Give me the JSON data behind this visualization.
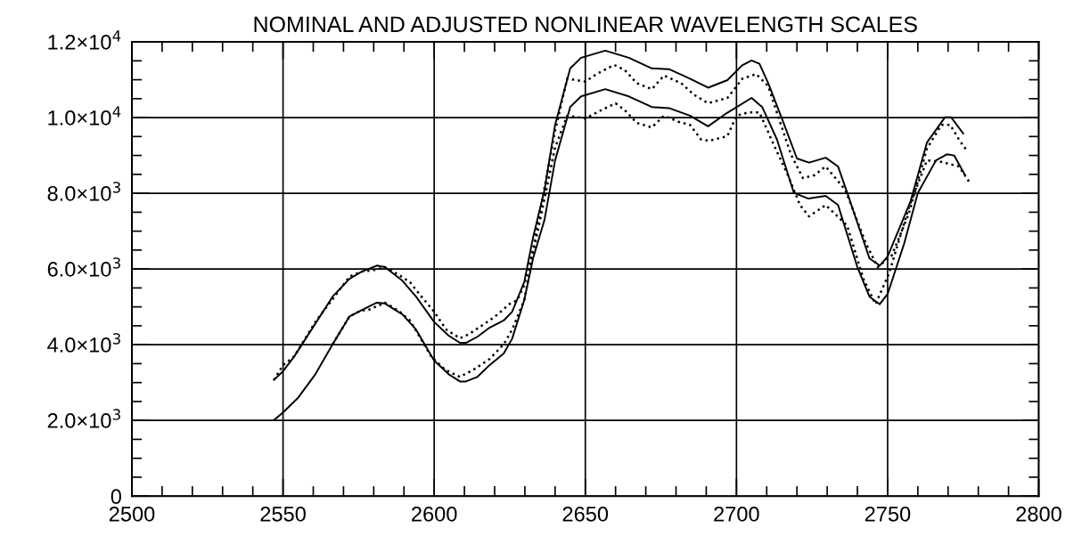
{
  "chart_data": {
    "type": "line",
    "title": "NOMINAL AND ADJUSTED NONLINEAR WAVELENGTH SCALES",
    "xlim": [
      2500,
      2800
    ],
    "xticks": [
      2500,
      2550,
      2600,
      2650,
      2700,
      2750,
      2800
    ],
    "ylim": [
      0,
      12000
    ],
    "yticks": [
      {
        "value": 0,
        "label": "0"
      },
      {
        "value": 2000,
        "label": "2.0×10$^{3}$"
      },
      {
        "value": 4000,
        "label": "4.0×10$^{3}$"
      },
      {
        "value": 6000,
        "label": "6.0×10$^{3}$"
      },
      {
        "value": 8000,
        "label": "8.0×10$^{3}$"
      },
      {
        "value": 10000,
        "label": "1.0×10$^{4}$"
      },
      {
        "value": 12000,
        "label": "1.2×10$^{4}$"
      }
    ],
    "grid": true,
    "marker": "none",
    "series": [
      {
        "color": "#000000",
        "line_style": "solid",
        "x": [
          2547,
          2550,
          2553.7,
          2560.7,
          2566.4,
          2572,
          2576,
          2581,
          2583.7,
          2589.5,
          2594,
          2600,
          2604.8,
          2608.5,
          2610.5,
          2614.3,
          2618.3,
          2623,
          2625.8,
          2629.8,
          2632.7,
          2636.5,
          2640,
          2645,
          2648.6,
          2656.6,
          2664.4,
          2672,
          2677.7,
          2684.6,
          2690.6,
          2697,
          2701.9,
          2705,
          2707.6,
          2710.5,
          2715,
          2720,
          2724,
          2729.5,
          2733.6,
          2737,
          2744,
          2747.4,
          2750,
          2757.5,
          2763,
          2769,
          2771,
          2775
        ],
        "values": [
          3070,
          3300,
          3690,
          4560,
          5270,
          5740,
          5930,
          6090,
          6050,
          5690,
          5270,
          4600,
          4240,
          4050,
          4050,
          4210,
          4450,
          4640,
          4870,
          5660,
          6830,
          8090,
          9810,
          11300,
          11580,
          11770,
          11580,
          11300,
          11280,
          11030,
          10790,
          10990,
          11380,
          11510,
          11420,
          10910,
          9980,
          8920,
          8810,
          8940,
          8710,
          7930,
          6280,
          6090,
          6330,
          7770,
          9340,
          10010,
          10010,
          9580
        ]
      },
      {
        "color": "#000000",
        "line_style": "dotted",
        "x": [
          2547,
          2550,
          2553.7,
          2560.7,
          2572,
          2576,
          2580,
          2583.7,
          2588,
          2592,
          2595.5,
          2600,
          2604,
          2608.5,
          2611.5,
          2618.3,
          2621,
          2624.8,
          2627.5,
          2629.8,
          2632.7,
          2640,
          2644,
          2650,
          2653.7,
          2659.5,
          2663,
          2667,
          2672,
          2676,
          2681.7,
          2686,
          2690.6,
          2697,
          2702,
          2706.5,
          2710.5,
          2714,
          2718,
          2722,
          2725.8,
          2729.5,
          2736,
          2742.8,
          2746.7,
          2751.4,
          2757,
          2763,
          2767.8,
          2770.7,
          2773.6,
          2776
        ],
        "values": [
          3070,
          3460,
          3690,
          4600,
          5800,
          5930,
          5970,
          6050,
          5860,
          5650,
          5300,
          4870,
          4400,
          4170,
          4280,
          4640,
          4800,
          5070,
          5180,
          5580,
          6520,
          9650,
          11030,
          10950,
          11150,
          11390,
          11260,
          10910,
          10750,
          11110,
          10910,
          10600,
          10380,
          10520,
          11030,
          11150,
          10830,
          9980,
          9030,
          8400,
          8480,
          8710,
          8090,
          6680,
          6050,
          6360,
          7460,
          9180,
          9810,
          9810,
          9420,
          9150
        ]
      },
      {
        "color": "#000000",
        "line_style": "solid",
        "x": [
          2547,
          2550,
          2555,
          2560.7,
          2566.4,
          2572,
          2576,
          2581,
          2583.7,
          2589.5,
          2594,
          2600,
          2604.8,
          2608.5,
          2610.5,
          2614.3,
          2618.3,
          2623,
          2625.8,
          2629.8,
          2632.7,
          2636.5,
          2640,
          2645,
          2648.6,
          2656.6,
          2664.4,
          2672,
          2677.7,
          2684.6,
          2690.6,
          2697,
          2705,
          2708.5,
          2713.4,
          2719,
          2723.8,
          2729.5,
          2733.6,
          2740,
          2744,
          2747.4,
          2750,
          2755.5,
          2760,
          2766,
          2769.6,
          2772,
          2775.6
        ],
        "values": [
          2010,
          2210,
          2600,
          3220,
          4010,
          4750,
          4910,
          5110,
          5090,
          4800,
          4400,
          3580,
          3220,
          3030,
          3030,
          3150,
          3460,
          3770,
          4160,
          5180,
          6280,
          7300,
          8870,
          10280,
          10560,
          10750,
          10560,
          10280,
          10250,
          10050,
          9770,
          10130,
          10520,
          10280,
          9420,
          8010,
          7860,
          7930,
          7690,
          6050,
          5270,
          5070,
          5340,
          6680,
          8010,
          8870,
          9030,
          9000,
          8480
        ]
      },
      {
        "color": "#000000",
        "line_style": "dotted",
        "x": [
          2566.4,
          2572,
          2576,
          2578,
          2583.7,
          2588,
          2592,
          2599,
          2603.6,
          2608.5,
          2613,
          2618.3,
          2623,
          2625.8,
          2629.8,
          2632.7,
          2640,
          2644,
          2650,
          2655.4,
          2660,
          2663,
          2667,
          2672,
          2676,
          2680.8,
          2684.6,
          2688.3,
          2691,
          2697,
          2700,
          2704,
          2707.6,
          2712.4,
          2717,
          2721,
          2724,
          2729.5,
          2736.6,
          2742,
          2746,
          2750.5,
          2757,
          2763,
          2767.8,
          2773.6,
          2777.5
        ],
        "values": [
          4010,
          4750,
          4910,
          4910,
          5110,
          4910,
          4640,
          3690,
          3340,
          3150,
          3340,
          3620,
          4010,
          4400,
          5180,
          6400,
          9210,
          10050,
          9980,
          10200,
          10380,
          10200,
          9860,
          9740,
          10050,
          9890,
          9810,
          9420,
          9390,
          9510,
          10050,
          10140,
          10140,
          9270,
          8480,
          7690,
          7390,
          7690,
          7150,
          5740,
          5070,
          5890,
          7620,
          8870,
          8830,
          8710,
          8240
        ]
      }
    ]
  }
}
